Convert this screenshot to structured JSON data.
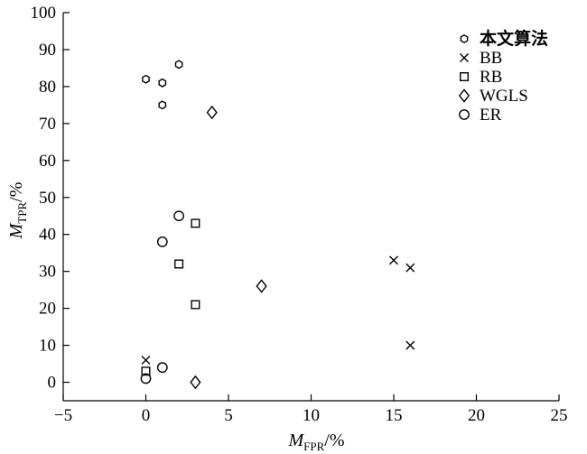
{
  "chart_data": {
    "type": "scatter",
    "x_axis": {
      "label_main": "M",
      "label_sub": "FPR",
      "label_suffix": "/%",
      "range": [
        -5,
        25
      ],
      "ticks": [
        -5,
        0,
        5,
        10,
        15,
        20,
        25
      ],
      "tick_labels": [
        "−5",
        "0",
        "5",
        "10",
        "15",
        "20",
        "25"
      ]
    },
    "y_axis": {
      "label_main": "M",
      "label_sub": "TPR",
      "label_suffix": "/%",
      "range": [
        -5,
        100
      ],
      "ticks": [
        0,
        10,
        20,
        30,
        40,
        50,
        60,
        70,
        80,
        90,
        100
      ],
      "tick_labels": [
        "0",
        "10",
        "20",
        "30",
        "40",
        "50",
        "60",
        "70",
        "80",
        "90",
        "100"
      ]
    },
    "legend_position": "top-right",
    "series": [
      {
        "name": "本文算法",
        "marker": "hexagon",
        "points": [
          [
            0,
            82
          ],
          [
            1,
            81
          ],
          [
            2,
            86
          ],
          [
            1,
            75
          ]
        ]
      },
      {
        "name": "BB",
        "marker": "x",
        "points": [
          [
            15,
            33
          ],
          [
            16,
            31
          ],
          [
            16,
            10
          ],
          [
            0,
            6
          ]
        ]
      },
      {
        "name": "RB",
        "marker": "square",
        "points": [
          [
            3,
            43
          ],
          [
            2,
            32
          ],
          [
            3,
            21
          ],
          [
            0,
            3
          ]
        ]
      },
      {
        "name": "WGLS",
        "marker": "diamond",
        "points": [
          [
            4,
            73
          ],
          [
            7,
            26
          ],
          [
            3,
            0
          ]
        ]
      },
      {
        "name": "ER",
        "marker": "circle",
        "points": [
          [
            2,
            45
          ],
          [
            1,
            38
          ],
          [
            1,
            4
          ],
          [
            0,
            1
          ]
        ]
      }
    ]
  }
}
